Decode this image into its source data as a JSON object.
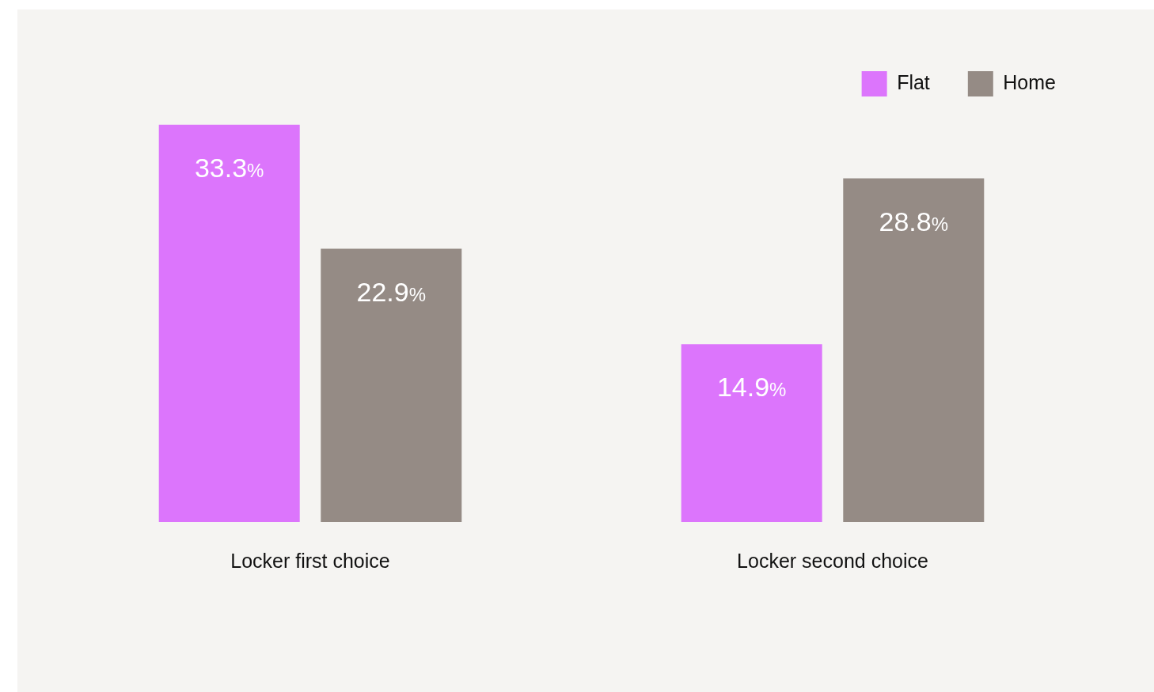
{
  "chart_data": {
    "type": "bar",
    "categories": [
      "Locker first choice",
      "Locker second choice"
    ],
    "series": [
      {
        "name": "Flat",
        "color": "#dc75fc",
        "values": [
          33.3,
          14.9
        ],
        "value_labels": [
          "33.3%",
          "14.9%"
        ]
      },
      {
        "name": "Home",
        "color": "#958b85",
        "values": [
          22.9,
          28.8
        ],
        "value_labels": [
          "22.9%",
          "28.8%"
        ]
      }
    ],
    "legend": "top right",
    "grid": false,
    "tick_labels": "x"
  }
}
